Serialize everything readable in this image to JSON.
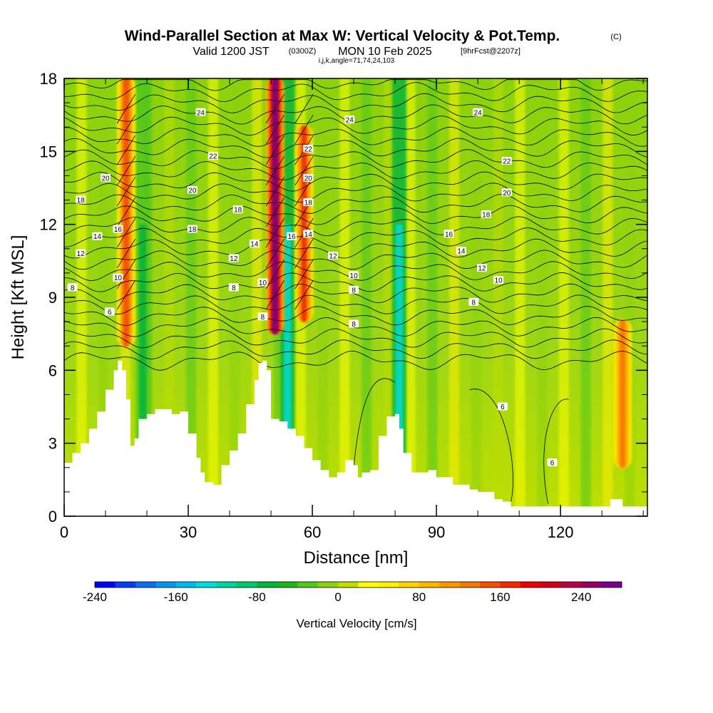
{
  "title": {
    "main": "Wind-Parallel Section at Max W: Vertical Velocity & Pot.Temp.",
    "main_tag": "(C)",
    "valid_a": "Valid 1200 JST",
    "valid_b": "(0300Z)",
    "valid_c": "MON 10 Feb 2025",
    "valid_d": "[9hrFcst@2207z]",
    "indices": "i,j,k,angle=71,74,24,103"
  },
  "chart_data": {
    "type": "heatmap",
    "xlabel": "Distance [nm]",
    "ylabel": "Height [Kft MSL]",
    "xlim": [
      0,
      141
    ],
    "ylim": [
      0,
      18
    ],
    "x_ticks": [
      "0",
      "30",
      "60",
      "90",
      "120"
    ],
    "y_ticks": [
      "0",
      "3",
      "6",
      "9",
      "12",
      "15",
      "18"
    ],
    "terrain_kft": [
      [
        0,
        2.2
      ],
      [
        2,
        2.6
      ],
      [
        4,
        3.0
      ],
      [
        6,
        3.6
      ],
      [
        8,
        4.3
      ],
      [
        10,
        5.2
      ],
      [
        12,
        6.0
      ],
      [
        13,
        6.4
      ],
      [
        14,
        6.0
      ],
      [
        15,
        4.8
      ],
      [
        16,
        2.9
      ],
      [
        17,
        3.2
      ],
      [
        18,
        4.0
      ],
      [
        20,
        4.2
      ],
      [
        22,
        4.4
      ],
      [
        24,
        4.4
      ],
      [
        26,
        4.2
      ],
      [
        28,
        4.3
      ],
      [
        30,
        3.4
      ],
      [
        32,
        2.4
      ],
      [
        33,
        1.8
      ],
      [
        34,
        1.4
      ],
      [
        36,
        1.3
      ],
      [
        38,
        2.1
      ],
      [
        40,
        2.7
      ],
      [
        42,
        3.4
      ],
      [
        44,
        4.6
      ],
      [
        46,
        5.6
      ],
      [
        47,
        6.3
      ],
      [
        48,
        6.4
      ],
      [
        49,
        6.0
      ],
      [
        50,
        4.0
      ],
      [
        52,
        3.9
      ],
      [
        54,
        3.6
      ],
      [
        56,
        3.3
      ],
      [
        58,
        2.8
      ],
      [
        60,
        2.3
      ],
      [
        62,
        1.9
      ],
      [
        64,
        1.6
      ],
      [
        66,
        1.8
      ],
      [
        68,
        2.3
      ],
      [
        70,
        2.1
      ],
      [
        71,
        1.6
      ],
      [
        72,
        1.8
      ],
      [
        74,
        1.9
      ],
      [
        76,
        3.3
      ],
      [
        78,
        4.1
      ],
      [
        80,
        4.2
      ],
      [
        81,
        3.6
      ],
      [
        82,
        2.6
      ],
      [
        84,
        1.8
      ],
      [
        86,
        1.8
      ],
      [
        88,
        1.9
      ],
      [
        90,
        1.6
      ],
      [
        92,
        1.6
      ],
      [
        94,
        1.3
      ],
      [
        96,
        1.3
      ],
      [
        98,
        1.1
      ],
      [
        100,
        1.0
      ],
      [
        104,
        0.7
      ],
      [
        106,
        0.6
      ],
      [
        108,
        0.4
      ],
      [
        112,
        0.4
      ],
      [
        116,
        0.4
      ],
      [
        120,
        0.4
      ],
      [
        124,
        0.4
      ],
      [
        126,
        0.4
      ],
      [
        128,
        0.4
      ],
      [
        130,
        0.4
      ],
      [
        132,
        0.7
      ],
      [
        134,
        0.7
      ],
      [
        135,
        0.4
      ],
      [
        140,
        0.4
      ]
    ],
    "updraft_columns": [
      {
        "x_nm": 15,
        "peak_cms": 150,
        "bottom_kft": 7,
        "top_kft": 18
      },
      {
        "x_nm": 51,
        "peak_cms": 260,
        "bottom_kft": 7.5,
        "top_kft": 18
      },
      {
        "x_nm": 58,
        "peak_cms": 160,
        "bottom_kft": 8,
        "top_kft": 16
      },
      {
        "x_nm": 135,
        "peak_cms": 120,
        "bottom_kft": 2,
        "top_kft": 8
      }
    ],
    "downdraft_columns": [
      {
        "x_nm": 19,
        "peak_cms": -80
      },
      {
        "x_nm": 54,
        "peak_cms": -140
      },
      {
        "x_nm": 81,
        "peak_cms": -130
      }
    ],
    "theta_contour_labels": [
      {
        "text": "24",
        "x_nm": 33,
        "y_kft": 16.6
      },
      {
        "text": "22",
        "x_nm": 36,
        "y_kft": 14.8
      },
      {
        "text": "20",
        "x_nm": 10,
        "y_kft": 13.9
      },
      {
        "text": "20",
        "x_nm": 31,
        "y_kft": 13.4
      },
      {
        "text": "18",
        "x_nm": 4,
        "y_kft": 13.0
      },
      {
        "text": "18",
        "x_nm": 42,
        "y_kft": 12.6
      },
      {
        "text": "18",
        "x_nm": 31,
        "y_kft": 11.8
      },
      {
        "text": "16",
        "x_nm": 13,
        "y_kft": 11.8
      },
      {
        "text": "14",
        "x_nm": 8,
        "y_kft": 11.5
      },
      {
        "text": "14",
        "x_nm": 46,
        "y_kft": 11.2
      },
      {
        "text": "12",
        "x_nm": 4,
        "y_kft": 10.8
      },
      {
        "text": "12",
        "x_nm": 41,
        "y_kft": 10.6
      },
      {
        "text": "10",
        "x_nm": 13,
        "y_kft": 9.8
      },
      {
        "text": "10",
        "x_nm": 48,
        "y_kft": 9.6
      },
      {
        "text": "8",
        "x_nm": 2,
        "y_kft": 9.4
      },
      {
        "text": "8",
        "x_nm": 41,
        "y_kft": 9.4
      },
      {
        "text": "6",
        "x_nm": 11,
        "y_kft": 8.4
      },
      {
        "text": "8",
        "x_nm": 48,
        "y_kft": 8.2
      },
      {
        "text": "24",
        "x_nm": 69,
        "y_kft": 16.3
      },
      {
        "text": "22",
        "x_nm": 59,
        "y_kft": 15.1
      },
      {
        "text": "20",
        "x_nm": 59,
        "y_kft": 13.9
      },
      {
        "text": "18",
        "x_nm": 59,
        "y_kft": 12.9
      },
      {
        "text": "16",
        "x_nm": 55,
        "y_kft": 11.5
      },
      {
        "text": "14",
        "x_nm": 59,
        "y_kft": 11.6
      },
      {
        "text": "12",
        "x_nm": 65,
        "y_kft": 10.7
      },
      {
        "text": "10",
        "x_nm": 70,
        "y_kft": 9.9
      },
      {
        "text": "8",
        "x_nm": 70,
        "y_kft": 9.3
      },
      {
        "text": "8",
        "x_nm": 70,
        "y_kft": 7.9
      },
      {
        "text": "24",
        "x_nm": 100,
        "y_kft": 16.6
      },
      {
        "text": "22",
        "x_nm": 107,
        "y_kft": 14.6
      },
      {
        "text": "20",
        "x_nm": 107,
        "y_kft": 13.3
      },
      {
        "text": "18",
        "x_nm": 102,
        "y_kft": 12.4
      },
      {
        "text": "16",
        "x_nm": 93,
        "y_kft": 11.6
      },
      {
        "text": "14",
        "x_nm": 96,
        "y_kft": 10.9
      },
      {
        "text": "12",
        "x_nm": 101,
        "y_kft": 10.2
      },
      {
        "text": "10",
        "x_nm": 105,
        "y_kft": 9.7
      },
      {
        "text": "8",
        "x_nm": 99,
        "y_kft": 8.8
      },
      {
        "text": "6",
        "x_nm": 106,
        "y_kft": 4.5
      },
      {
        "text": "6",
        "x_nm": 118,
        "y_kft": 2.2
      }
    ],
    "colorbar": {
      "label": "Vertical Velocity [cm/s]",
      "tick_labels": [
        "-240",
        "-160",
        "-80",
        "0",
        "80",
        "160",
        "240"
      ],
      "min": -240,
      "max": 280,
      "step": 20,
      "colors": [
        "#0000f5",
        "#0a3cf0",
        "#0a6ef0",
        "#0096f5",
        "#00b9f0",
        "#00dcdc",
        "#00d2a0",
        "#00c86e",
        "#00b43c",
        "#1eb41e",
        "#50c81e",
        "#8cd20a",
        "#bede00",
        "#ffff00",
        "#fff000",
        "#ffd200",
        "#ffb400",
        "#fa9600",
        "#f57800",
        "#f55000",
        "#f52800",
        "#f00000",
        "#d2001e",
        "#b40046",
        "#960064",
        "#78008c"
      ]
    }
  }
}
